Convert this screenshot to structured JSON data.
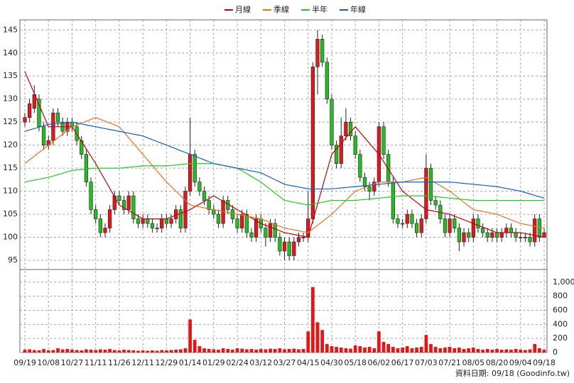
{
  "chart_data": {
    "type": "candlestick",
    "categories": [
      "09/19",
      null,
      null,
      null,
      null,
      "10/08",
      null,
      null,
      null,
      null,
      "10/27",
      null,
      null,
      null,
      null,
      "11/11",
      null,
      null,
      null,
      null,
      "11/26",
      null,
      null,
      null,
      null,
      "12/11",
      null,
      null,
      null,
      null,
      "12/29",
      null,
      null,
      null,
      null,
      "01/14",
      null,
      null,
      null,
      null,
      "01/29",
      null,
      null,
      null,
      null,
      "02/24",
      null,
      null,
      null,
      null,
      "03/12",
      null,
      null,
      null,
      null,
      "03/27",
      null,
      null,
      null,
      null,
      "04/15",
      null,
      null,
      null,
      null,
      "04/30",
      null,
      null,
      null,
      null,
      "05/18",
      null,
      null,
      null,
      null,
      "06/02",
      null,
      null,
      null,
      null,
      "06/17",
      null,
      null,
      null,
      null,
      "07/03",
      null,
      null,
      null,
      null,
      "07/21",
      null,
      null,
      null,
      null,
      "08/05",
      null,
      null,
      null,
      null,
      "08/20",
      null,
      null,
      null,
      null,
      "09/04",
      null,
      null,
      null,
      null,
      "09/18"
    ],
    "open": [
      125,
      126,
      128,
      130,
      124,
      120,
      121,
      127,
      125,
      123,
      125,
      124,
      121,
      118,
      112,
      106,
      104,
      101,
      102,
      106,
      109,
      108,
      106,
      109,
      104,
      103,
      104,
      103,
      102,
      102,
      104,
      103,
      104,
      106,
      102,
      110,
      118,
      112,
      110,
      108,
      106,
      105,
      103,
      108,
      106,
      104,
      102,
      105,
      101,
      100,
      104,
      102,
      100,
      103,
      100,
      97,
      99,
      96,
      99,
      100,
      100,
      104,
      137,
      143,
      138,
      130,
      120,
      116,
      122,
      125,
      122,
      118,
      113,
      111,
      110,
      112,
      124,
      118,
      112,
      104,
      103,
      103,
      105,
      103,
      101,
      104,
      115,
      108,
      107,
      104,
      101,
      104,
      102,
      99,
      101,
      100,
      104,
      102,
      101,
      100,
      101,
      100,
      101,
      102,
      101,
      100,
      100,
      100,
      99,
      104,
      100
    ],
    "high": [
      127,
      130,
      133,
      131,
      125,
      122,
      128,
      128,
      126,
      126,
      126,
      125,
      122,
      119,
      113,
      107,
      105,
      103,
      107,
      110,
      110,
      109,
      110,
      110,
      105,
      105,
      105,
      104,
      103,
      105,
      105,
      105,
      107,
      107,
      111,
      126,
      119,
      113,
      111,
      109,
      107,
      106,
      109,
      109,
      107,
      105,
      106,
      106,
      102,
      105,
      105,
      103,
      104,
      104,
      101,
      100,
      100,
      100,
      101,
      101,
      110,
      138,
      145,
      144,
      139,
      131,
      121,
      126,
      128,
      126,
      123,
      119,
      114,
      112,
      113,
      125,
      125,
      119,
      113,
      105,
      104,
      106,
      106,
      104,
      105,
      118,
      116,
      109,
      108,
      105,
      105,
      105,
      103,
      102,
      102,
      105,
      105,
      103,
      102,
      102,
      102,
      102,
      103,
      103,
      102,
      101,
      101,
      101,
      105,
      105,
      102
    ],
    "low": [
      124,
      125,
      127,
      123,
      119,
      119,
      120,
      124,
      122,
      122,
      123,
      120,
      117,
      111,
      105,
      103,
      100,
      100,
      101,
      105,
      107,
      105,
      105,
      103,
      102,
      102,
      102,
      101,
      101,
      101,
      102,
      102,
      103,
      101,
      101,
      109,
      111,
      109,
      107,
      105,
      104,
      102,
      102,
      105,
      103,
      101,
      101,
      100,
      99,
      99,
      101,
      98,
      99,
      99,
      96,
      95,
      95,
      95,
      98,
      99,
      99,
      103,
      131,
      137,
      129,
      119,
      115,
      115,
      121,
      121,
      117,
      112,
      110,
      108,
      109,
      111,
      117,
      111,
      103,
      102,
      102,
      102,
      102,
      100,
      100,
      103,
      107,
      106,
      103,
      100,
      100,
      101,
      97,
      98,
      99,
      99,
      101,
      100,
      99,
      99,
      99,
      99,
      100,
      100,
      99,
      99,
      99,
      98,
      98,
      99,
      100
    ],
    "close": [
      126,
      129,
      131,
      124,
      120,
      121,
      127,
      125,
      123,
      125,
      124,
      121,
      118,
      112,
      106,
      104,
      101,
      102,
      106,
      109,
      108,
      106,
      109,
      104,
      103,
      104,
      103,
      102,
      102,
      104,
      103,
      104,
      106,
      102,
      110,
      118,
      112,
      110,
      108,
      106,
      105,
      103,
      108,
      106,
      104,
      102,
      105,
      101,
      100,
      104,
      102,
      100,
      103,
      100,
      97,
      99,
      96,
      99,
      100,
      100,
      104,
      137,
      143,
      138,
      130,
      120,
      116,
      122,
      125,
      122,
      118,
      113,
      111,
      110,
      112,
      124,
      118,
      112,
      104,
      103,
      103,
      105,
      103,
      101,
      104,
      115,
      108,
      107,
      104,
      101,
      104,
      102,
      99,
      101,
      100,
      104,
      102,
      101,
      100,
      101,
      100,
      101,
      102,
      101,
      100,
      100,
      100,
      99,
      104,
      100,
      101
    ],
    "volume": [
      40,
      45,
      35,
      30,
      50,
      30,
      35,
      60,
      45,
      50,
      40,
      35,
      30,
      45,
      40,
      35,
      45,
      40,
      50,
      35,
      30,
      40,
      35,
      30,
      25,
      30,
      25,
      30,
      25,
      35,
      30,
      35,
      40,
      45,
      60,
      470,
      180,
      90,
      60,
      50,
      45,
      40,
      60,
      50,
      40,
      60,
      55,
      45,
      50,
      40,
      50,
      45,
      55,
      50,
      60,
      45,
      50,
      55,
      45,
      50,
      300,
      930,
      430,
      320,
      120,
      90,
      80,
      70,
      60,
      55,
      100,
      90,
      70,
      80,
      60,
      300,
      150,
      120,
      80,
      60,
      70,
      90,
      60,
      70,
      80,
      250,
      120,
      80,
      60,
      70,
      80,
      60,
      70,
      50,
      60,
      70,
      50,
      40,
      50,
      40,
      50,
      40,
      45,
      40,
      50,
      40,
      35,
      45,
      120,
      60,
      40
    ],
    "up_color": "#e8141c",
    "down_color": "#20c020",
    "volume_color": "#ee1111",
    "series": [
      {
        "name": "月線",
        "color": "#cc0000",
        "values": [
          136,
          133.6,
          131.2,
          128.8,
          126.4,
          124,
          124,
          124,
          124,
          124,
          124,
          122.4,
          120.8,
          119.2,
          117.6,
          116,
          114.2,
          112.4,
          110.6,
          108.8,
          107,
          106.4,
          105.8,
          105.2,
          104.6,
          104,
          104,
          104,
          104,
          104,
          104,
          104.4,
          104.8,
          105.2,
          105.6,
          106,
          106.6,
          107.2,
          107.8,
          108.4,
          109,
          108.4,
          107.8,
          107.2,
          106.6,
          106,
          105.4,
          104.8,
          104.2,
          103.6,
          103,
          102.6,
          102.2,
          101.8,
          101.4,
          101,
          100.8,
          100.6,
          100.4,
          100.2,
          100,
          103.6,
          107.2,
          110.8,
          114.4,
          118,
          119.2,
          120.4,
          121.6,
          122.8,
          124,
          122.8,
          121.6,
          120.4,
          119.2,
          118,
          116.4,
          114.8,
          113.2,
          111.6,
          110,
          109.2,
          108.4,
          107.6,
          106.8,
          106,
          105.8,
          105.6,
          105.4,
          105.2,
          105,
          104.6,
          104.2,
          103.8,
          103.4,
          103,
          102.6,
          102.2,
          101.8,
          101.4,
          101,
          101,
          101,
          101,
          101,
          101,
          100.8,
          100.6,
          100.4,
          100.2,
          100
        ]
      },
      {
        "name": "季線",
        "color": "#f07020",
        "values": [
          116,
          116.8,
          117.6,
          118.4,
          119.2,
          120,
          120.8,
          121.6,
          122.4,
          123.2,
          124,
          124.4,
          124.8,
          125.2,
          125.6,
          126,
          125.6,
          125.2,
          124.8,
          124.4,
          124,
          122.8,
          121.6,
          120.4,
          119.2,
          118,
          116.8,
          115.6,
          114.4,
          113.2,
          112,
          111,
          110,
          109,
          108,
          107,
          106.8,
          106.6,
          106.4,
          106.2,
          106,
          105.8,
          105.6,
          105.4,
          105.2,
          105,
          104.8,
          104.6,
          104.4,
          104.2,
          104,
          103.6,
          103.2,
          102.8,
          102.4,
          102,
          101.8,
          101.6,
          101.4,
          101.2,
          101,
          101.8,
          102.6,
          103.4,
          104.2,
          105,
          106,
          107,
          108,
          109,
          110,
          110.4,
          110.8,
          111.2,
          111.6,
          112,
          112,
          112,
          112,
          112,
          112,
          112.2,
          112.4,
          112.6,
          112.8,
          113,
          112.4,
          111.8,
          111.2,
          110.6,
          110,
          109.2,
          108.4,
          107.6,
          106.8,
          106,
          105.8,
          105.6,
          105.4,
          105.2,
          105,
          104.6,
          104.2,
          103.8,
          103.4,
          103,
          102.8,
          102.6,
          102.4,
          102.2,
          102
        ]
      },
      {
        "name": "半年",
        "color": "#22cc22",
        "values": [
          112,
          112.2,
          112.4,
          112.6,
          112.8,
          113,
          113.3,
          113.6,
          113.9,
          114.2,
          114.5,
          114.6,
          114.7,
          114.8,
          114.9,
          115,
          115,
          115,
          115,
          115,
          115,
          115.1,
          115.2,
          115.3,
          115.4,
          115.5,
          115.5,
          115.5,
          115.5,
          115.5,
          115.5,
          115.6,
          115.7,
          115.8,
          115.9,
          116,
          116,
          116,
          116,
          116,
          116,
          115.8,
          115.6,
          115.4,
          115.2,
          115,
          114.4,
          113.8,
          113.2,
          112.6,
          112,
          111.2,
          110.4,
          109.6,
          108.8,
          108,
          107.8,
          107.6,
          107.4,
          107.2,
          107,
          107.2,
          107.4,
          107.6,
          107.8,
          108,
          108,
          108,
          108,
          108,
          108,
          108.1,
          108.2,
          108.3,
          108.4,
          108.5,
          108.6,
          108.7,
          108.8,
          108.9,
          109,
          109,
          109,
          109,
          109,
          109,
          108.9,
          108.8,
          108.7,
          108.6,
          108.5,
          108.4,
          108.3,
          108.2,
          108.1,
          108,
          108,
          108,
          108,
          108,
          108,
          108,
          108,
          108,
          108,
          108,
          108,
          108,
          108,
          108,
          108
        ]
      },
      {
        "name": "年線",
        "color": "#1060d0",
        "values": [
          123,
          123.3,
          123.6,
          123.9,
          124.2,
          124.5,
          124.6,
          124.7,
          124.8,
          124.9,
          125,
          124.8,
          124.6,
          124.4,
          124.2,
          124,
          123.8,
          123.6,
          123.4,
          123.2,
          123,
          122.8,
          122.6,
          122.4,
          122.2,
          122,
          121.6,
          121.2,
          120.8,
          120.4,
          120,
          119.6,
          119.2,
          118.8,
          118.4,
          118,
          117.6,
          117.2,
          116.8,
          116.4,
          116,
          115.8,
          115.6,
          115.4,
          115.2,
          115,
          114.8,
          114.6,
          114.4,
          114.2,
          114,
          113.5,
          113,
          112.5,
          112,
          111.5,
          111.3,
          111.1,
          110.9,
          110.7,
          110.5,
          110.5,
          110.5,
          110.5,
          110.5,
          110.5,
          110.6,
          110.7,
          110.8,
          110.9,
          111,
          111.1,
          111.2,
          111.3,
          111.4,
          111.5,
          111.6,
          111.7,
          111.8,
          111.9,
          112,
          112,
          112,
          112,
          112,
          112,
          112,
          112,
          112,
          112,
          112,
          111.9,
          111.8,
          111.7,
          111.6,
          111.5,
          111.4,
          111.3,
          111.2,
          111.1,
          111,
          110.8,
          110.6,
          110.4,
          110.2,
          110,
          109.7,
          109.4,
          109.1,
          108.8,
          108.5
        ]
      }
    ],
    "ylim": [
      93,
      147.2
    ],
    "yticks": [
      95,
      100,
      105,
      110,
      115,
      120,
      125,
      130,
      135,
      140,
      145
    ],
    "y2lim": [
      0,
      1180
    ],
    "y2ticks": [
      0,
      200,
      400,
      600,
      800,
      {
        "value": 1000,
        "label": "1,000"
      }
    ],
    "grid": true,
    "legend": "top",
    "note": "資料日期: 09/18  (Goodinfo.tw)"
  }
}
